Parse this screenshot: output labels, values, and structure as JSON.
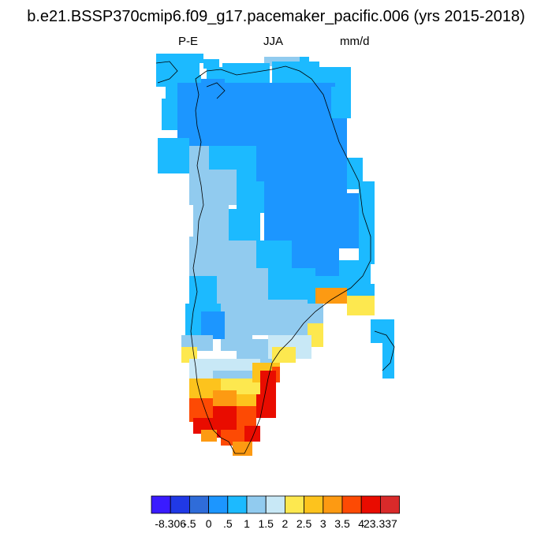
{
  "title": "b.e21.BSSP370cmip6.f09_g17.pacemaker_pacific.006 (yrs 2015-2018)",
  "subtitle": {
    "left": "P-E",
    "center": "JJA",
    "right": "mm/d"
  },
  "colorbar": {
    "colors": [
      "#3a1bff",
      "#2039e6",
      "#2f6cd9",
      "#1c96ff",
      "#1cbaff",
      "#91cbef",
      "#c8e8f6",
      "#fde84f",
      "#fdc31d",
      "#fd9a12",
      "#fd4a04",
      "#e90c00",
      "#d92a2a"
    ],
    "labels": [
      "-8.306",
      "-.5",
      "0",
      ".5",
      "1",
      "1.5",
      "2",
      "2.5",
      "3",
      "3.5",
      "4",
      "23.337"
    ]
  }
}
